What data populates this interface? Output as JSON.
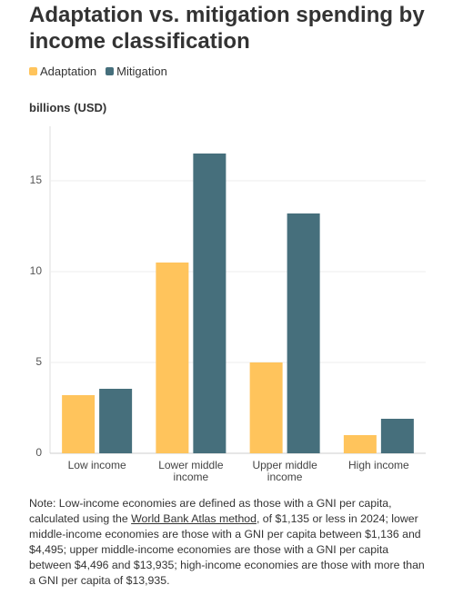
{
  "chart_data": {
    "type": "bar",
    "title": "Adaptation vs. mitigation spending by income classification",
    "y_label": "billions (USD)",
    "categories": [
      "Low income",
      "Lower middle income",
      "Upper middle income",
      "High income"
    ],
    "series": [
      {
        "name": "Adaptation",
        "color": "#ffc45c",
        "values": [
          3.2,
          10.5,
          5.0,
          1.0
        ]
      },
      {
        "name": "Mitigation",
        "color": "#466f7c",
        "values": [
          3.55,
          16.5,
          13.2,
          1.9
        ]
      }
    ],
    "ylim": [
      0,
      18
    ],
    "yticks": [
      0,
      5,
      10,
      15
    ],
    "grid": true,
    "note_parts": [
      "Note: Low-income economies are defined as those with a GNI per capita, calculated using the ",
      "World Bank Atlas method",
      ", of $1,135 or less in 2024; lower middle-income economies are those with a GNI per capita between $1,136 and $4,495; upper middle-income economies are those with a GNI per capita between $4,496 and $13,935; high-income economies are those with more than a GNI per capita of $13,935."
    ]
  }
}
